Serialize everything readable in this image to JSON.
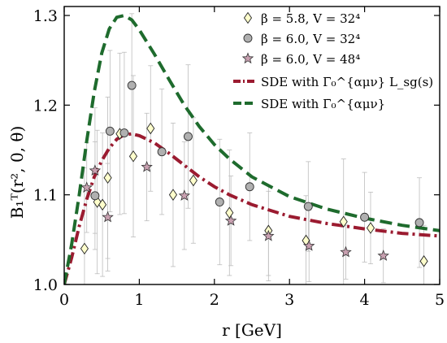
{
  "chart_data": {
    "type": "scatter",
    "xlabel": "r [GeV]",
    "ylabel": "B₁ᵀ(r², 0, θ)",
    "xlim": [
      0,
      5
    ],
    "ylim": [
      1.0,
      1.31
    ],
    "x_ticks": [
      "0",
      "1",
      "2",
      "3",
      "4",
      "5"
    ],
    "y_ticks": [
      "1.0",
      "1.1",
      "1.2",
      "1.3"
    ],
    "grid": false,
    "legend_position": "top-right",
    "series": [
      {
        "name": "β = 5.8, V = 32⁴",
        "marker": "diamond",
        "color": "#ffffcc",
        "points": [
          {
            "x": 0.27,
            "y": 1.04,
            "err": 0.09
          },
          {
            "x": 0.44,
            "y": 1.092,
            "err": 0.08
          },
          {
            "x": 0.51,
            "y": 1.089,
            "err": 0.08
          },
          {
            "x": 0.58,
            "y": 1.119,
            "err": 0.09
          },
          {
            "x": 0.74,
            "y": 1.168,
            "err": 0.09
          },
          {
            "x": 0.92,
            "y": 1.143,
            "err": 0.09
          },
          {
            "x": 1.15,
            "y": 1.174,
            "err": 0.07
          },
          {
            "x": 1.45,
            "y": 1.1,
            "err": 0.08
          },
          {
            "x": 1.72,
            "y": 1.116,
            "err": 0.07
          },
          {
            "x": 2.2,
            "y": 1.08,
            "err": 0.07
          },
          {
            "x": 2.72,
            "y": 1.06,
            "err": 0.05
          },
          {
            "x": 3.22,
            "y": 1.049,
            "err": 0.05
          },
          {
            "x": 3.72,
            "y": 1.07,
            "err": 0.07
          },
          {
            "x": 4.08,
            "y": 1.063,
            "err": 0.04
          },
          {
            "x": 4.79,
            "y": 1.026,
            "err": 0.04
          }
        ]
      },
      {
        "name": "β = 6.0, V = 32⁴",
        "marker": "circle",
        "color": "#b0b0b0",
        "points": [
          {
            "x": 0.41,
            "y": 1.099,
            "err": 0.06
          },
          {
            "x": 0.61,
            "y": 1.171,
            "err": 0.09
          },
          {
            "x": 0.8,
            "y": 1.169,
            "err": 0.09
          },
          {
            "x": 0.9,
            "y": 1.222,
            "err": 0.08
          },
          {
            "x": 1.3,
            "y": 1.148,
            "err": 0.07
          },
          {
            "x": 1.65,
            "y": 1.165,
            "err": 0.08
          },
          {
            "x": 2.07,
            "y": 1.092,
            "err": 0.07
          },
          {
            "x": 2.47,
            "y": 1.109,
            "err": 0.06
          },
          {
            "x": 3.25,
            "y": 1.087,
            "err": 0.05
          },
          {
            "x": 4.0,
            "y": 1.075,
            "err": 0.05
          },
          {
            "x": 4.73,
            "y": 1.069,
            "err": 0.05
          }
        ]
      },
      {
        "name": "β = 6.0, V = 48⁴",
        "marker": "star",
        "color": "#c8a0b0",
        "points": [
          {
            "x": 0.3,
            "y": 1.108,
            "err": 0.05
          },
          {
            "x": 0.41,
            "y": 1.127,
            "err": 0.07
          },
          {
            "x": 0.58,
            "y": 1.075,
            "err": 0.06
          },
          {
            "x": 1.1,
            "y": 1.131,
            "err": 0.06
          },
          {
            "x": 1.6,
            "y": 1.099,
            "err": 0.06
          },
          {
            "x": 2.22,
            "y": 1.071,
            "err": 0.05
          },
          {
            "x": 2.72,
            "y": 1.054,
            "err": 0.05
          },
          {
            "x": 3.26,
            "y": 1.043,
            "err": 0.04
          },
          {
            "x": 3.75,
            "y": 1.036,
            "err": 0.03
          },
          {
            "x": 4.25,
            "y": 1.032,
            "err": 0.03
          }
        ]
      }
    ],
    "curves": [
      {
        "name": "SDE with Γ̄₀^{αμν} L_sg(s)",
        "style": "dash-dot",
        "color": "#9b1b30",
        "points": [
          [
            0,
            1.0
          ],
          [
            0.1,
            1.03
          ],
          [
            0.2,
            1.065
          ],
          [
            0.3,
            1.095
          ],
          [
            0.4,
            1.12
          ],
          [
            0.5,
            1.138
          ],
          [
            0.6,
            1.152
          ],
          [
            0.7,
            1.162
          ],
          [
            0.8,
            1.167
          ],
          [
            0.9,
            1.168
          ],
          [
            1.0,
            1.166
          ],
          [
            1.2,
            1.158
          ],
          [
            1.4,
            1.146
          ],
          [
            1.6,
            1.133
          ],
          [
            1.8,
            1.12
          ],
          [
            2.0,
            1.109
          ],
          [
            2.2,
            1.1
          ],
          [
            2.5,
            1.089
          ],
          [
            3.0,
            1.076
          ],
          [
            3.5,
            1.068
          ],
          [
            4.0,
            1.062
          ],
          [
            4.5,
            1.057
          ],
          [
            5.0,
            1.054
          ]
        ]
      },
      {
        "name": "SDE with Γ̄₀^{αμν}",
        "style": "dash",
        "color": "#1e6b2d",
        "points": [
          [
            0,
            1.0
          ],
          [
            0.1,
            1.045
          ],
          [
            0.2,
            1.1
          ],
          [
            0.3,
            1.16
          ],
          [
            0.4,
            1.215
          ],
          [
            0.5,
            1.258
          ],
          [
            0.6,
            1.285
          ],
          [
            0.7,
            1.298
          ],
          [
            0.8,
            1.3
          ],
          [
            0.9,
            1.295
          ],
          [
            1.0,
            1.284
          ],
          [
            1.2,
            1.257
          ],
          [
            1.4,
            1.228
          ],
          [
            1.6,
            1.2
          ],
          [
            1.8,
            1.176
          ],
          [
            2.0,
            1.156
          ],
          [
            2.2,
            1.14
          ],
          [
            2.5,
            1.12
          ],
          [
            3.0,
            1.098
          ],
          [
            3.5,
            1.084
          ],
          [
            4.0,
            1.074
          ],
          [
            4.5,
            1.066
          ],
          [
            5.0,
            1.06
          ]
        ]
      }
    ]
  }
}
